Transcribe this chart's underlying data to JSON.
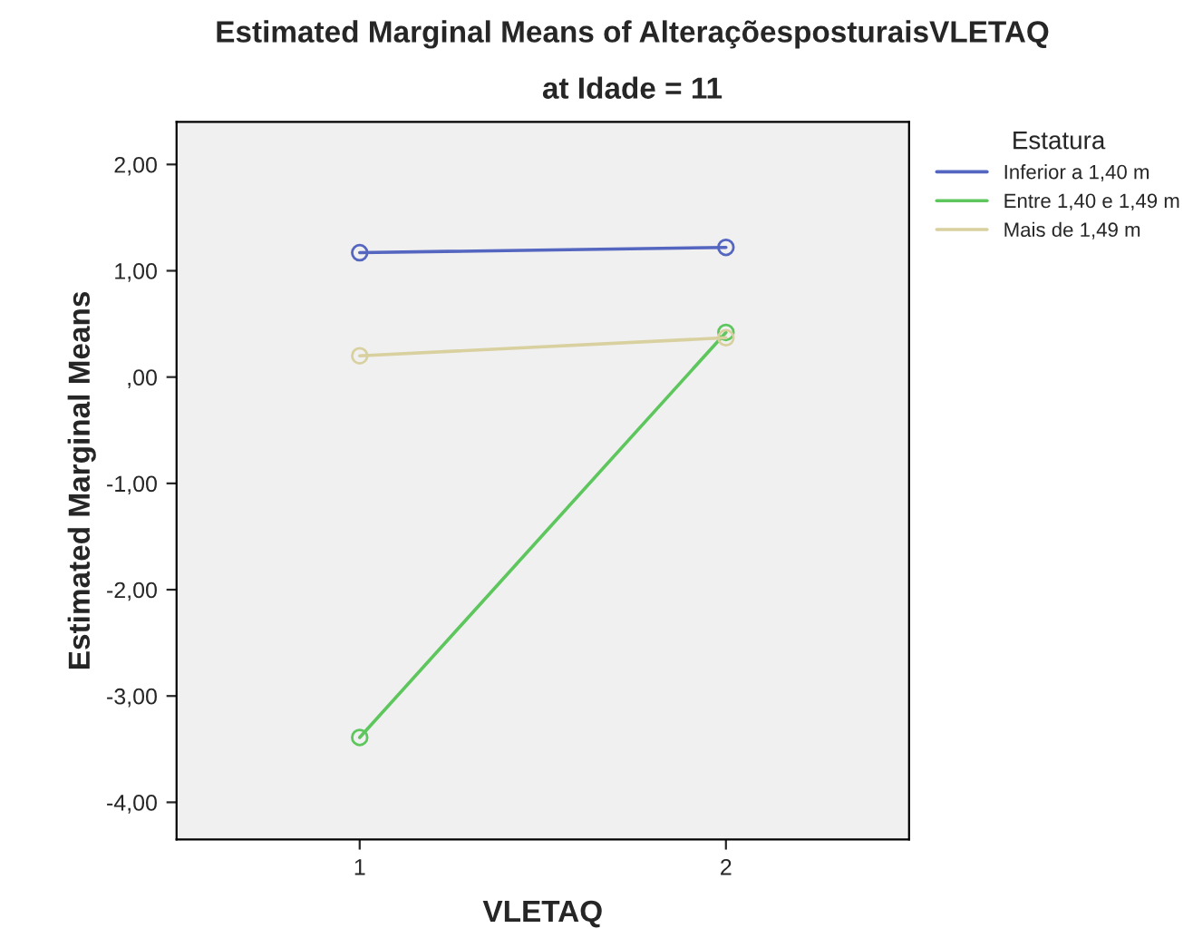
{
  "chart_data": {
    "type": "line",
    "title": "Estimated Marginal Means of AlteraçõesposturaisVLETAQ",
    "subtitle": "at Idade = 11",
    "xlabel": "VLETAQ",
    "ylabel": "Estimated Marginal Means",
    "legend_title": "Estatura",
    "categories": [
      "1",
      "2"
    ],
    "series": [
      {
        "name": "Inferior a 1,40 m",
        "color": "#5566c0",
        "values": [
          1.17,
          1.22
        ]
      },
      {
        "name": "Entre 1,40 e 1,49 m",
        "color": "#5dc65d",
        "values": [
          -3.39,
          0.42
        ]
      },
      {
        "name": "Mais de 1,49 m",
        "color": "#d9d0a0",
        "values": [
          0.2,
          0.37
        ]
      }
    ],
    "ylim": [
      -4.35,
      2.4
    ],
    "yticks": [
      {
        "value": 2,
        "label": "2,00"
      },
      {
        "value": 1,
        "label": "1,00"
      },
      {
        "value": 0,
        "label": ",00"
      },
      {
        "value": -1,
        "label": "-1,00"
      },
      {
        "value": -2,
        "label": "-2,00"
      },
      {
        "value": -3,
        "label": "-3,00"
      },
      {
        "value": -4,
        "label": "-4,00"
      }
    ],
    "marker": "circle",
    "line_style": "solid",
    "legend": "top right",
    "grid": false
  }
}
